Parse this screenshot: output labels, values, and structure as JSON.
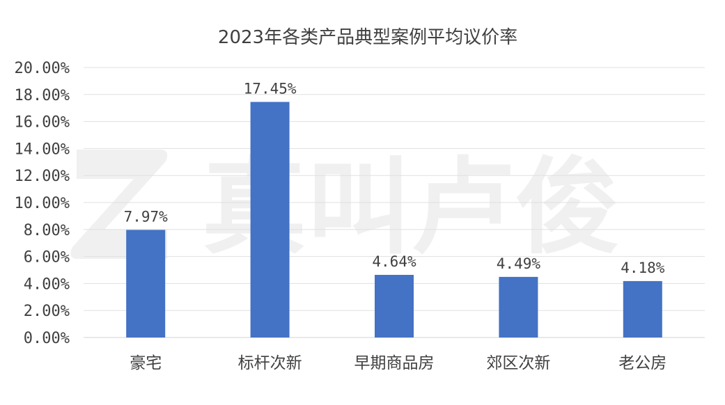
{
  "chart_data": {
    "type": "bar",
    "title": "2023年各类产品典型案例平均议价率",
    "xlabel": "",
    "ylabel": "",
    "categories": [
      "豪宅",
      "标杆次新",
      "早期商品房",
      "郊区次新",
      "老公房"
    ],
    "values": [
      7.97,
      17.45,
      4.64,
      4.49,
      4.18
    ],
    "data_labels": [
      "7.97%",
      "17.45%",
      "4.64%",
      "4.49%",
      "4.18%"
    ],
    "ylim": [
      0,
      20
    ],
    "y_ticks": [
      "0.00%",
      "2.00%",
      "4.00%",
      "6.00%",
      "8.00%",
      "10.00%",
      "12.00%",
      "14.00%",
      "16.00%",
      "18.00%",
      "20.00%"
    ],
    "grid": true,
    "legend": "none",
    "bar_color": "#4472C4"
  },
  "watermark": {
    "logo_icon": "z-logo-icon",
    "text": "真叫卢俊"
  }
}
